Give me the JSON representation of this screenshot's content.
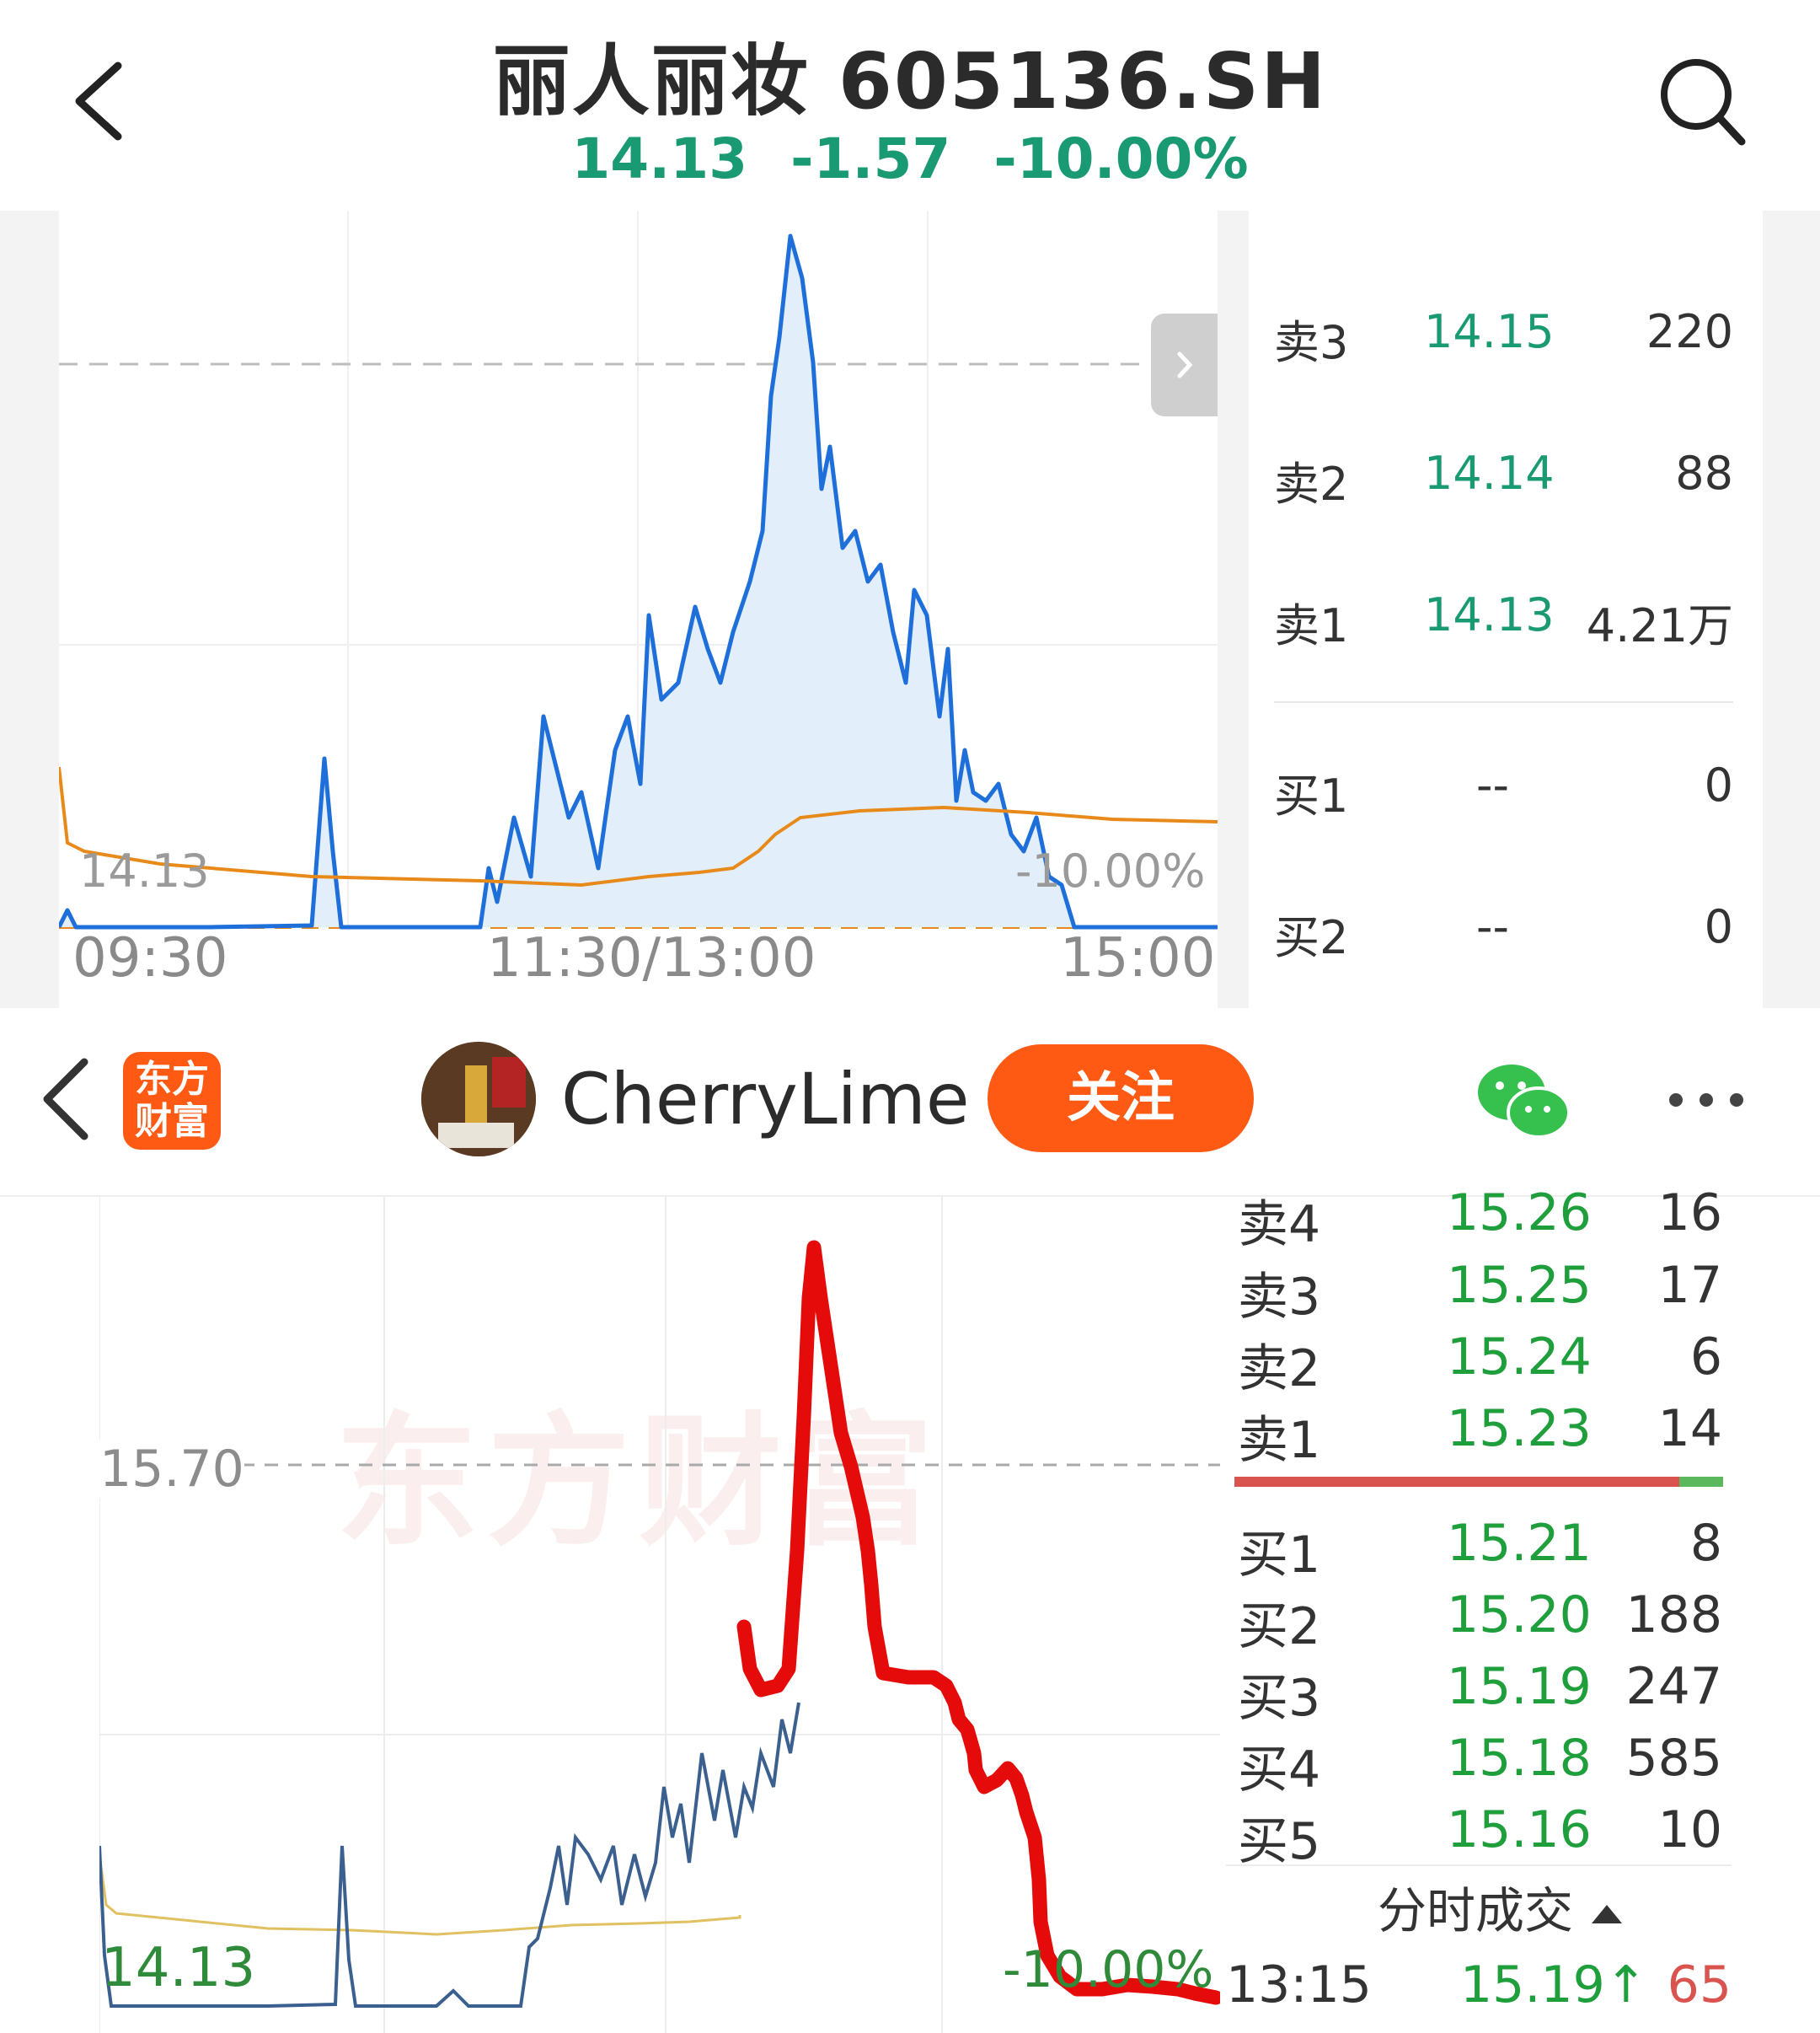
{
  "header": {
    "back_icon": "chevron-left-icon",
    "title": "丽人丽妆 605136.SH",
    "price": "14.13",
    "change": "-1.57",
    "change_pct": "-10.00%",
    "search_icon": "search-icon",
    "down_color": "#1a9a72"
  },
  "top_chart": {
    "left_price_label": "14.13",
    "right_pct_label": "-10.00%",
    "x_ticks": [
      "09:30",
      "11:30/13:00",
      "15:00"
    ],
    "expand_icon": "chevron-right-icon"
  },
  "top_orderbook": {
    "rows": [
      {
        "label": "卖3",
        "price": "14.15",
        "volume": "220"
      },
      {
        "label": "卖2",
        "price": "14.14",
        "volume": "88"
      },
      {
        "label": "卖1",
        "price": "14.13",
        "volume": "4.21万"
      },
      {
        "label": "买1",
        "price": "--",
        "volume": "0"
      },
      {
        "label": "买2",
        "price": "--",
        "volume": "0"
      }
    ]
  },
  "social": {
    "back_icon": "chevron-left-icon",
    "app_logo": "东方\n财富",
    "app_logo_line1": "东方",
    "app_logo_line2": "财富",
    "username": "CherryLime",
    "follow_label": "关注",
    "wechat_icon": "wechat-icon",
    "more_icon": "more-icon",
    "brand_color": "#ff5a14"
  },
  "bottom_chart": {
    "ref_price_label": "15.70",
    "low_price_label": "14.13",
    "pct_label": "-10.00%",
    "watermark": "东方财富"
  },
  "bottom_orderbook": {
    "sell_rows": [
      {
        "label": "卖4",
        "price": "15.26",
        "volume": "16"
      },
      {
        "label": "卖3",
        "price": "15.25",
        "volume": "17"
      },
      {
        "label": "卖2",
        "price": "15.24",
        "volume": "6"
      },
      {
        "label": "卖1",
        "price": "15.23",
        "volume": "14"
      }
    ],
    "buy_rows": [
      {
        "label": "买1",
        "price": "15.21",
        "volume": "8"
      },
      {
        "label": "买2",
        "price": "15.20",
        "volume": "188"
      },
      {
        "label": "买3",
        "price": "15.19",
        "volume": "247"
      },
      {
        "label": "买4",
        "price": "15.18",
        "volume": "585"
      },
      {
        "label": "买5",
        "price": "15.16",
        "volume": "10"
      }
    ],
    "ticks_label": "分时成交",
    "last_tick": {
      "time": "13:15",
      "price": "15.19↑",
      "volume": "65"
    },
    "sell_ratio": 0.91
  }
}
